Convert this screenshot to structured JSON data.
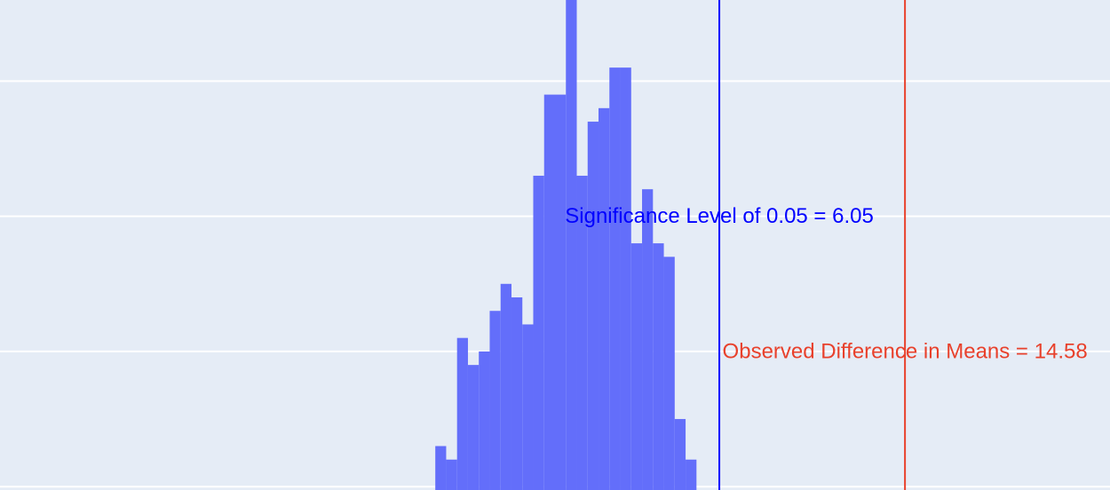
{
  "chart_data": {
    "type": "bar",
    "bar_color": "#636efa",
    "background": "#e5ecf6",
    "grid_color": "#ffffff",
    "grid": true,
    "bins": [
      {
        "x0": -7.0,
        "x1": -6.5,
        "count": 3
      },
      {
        "x0": -6.5,
        "x1": -6.0,
        "count": 2
      },
      {
        "x0": -6.0,
        "x1": -5.5,
        "count": 11
      },
      {
        "x0": -5.5,
        "x1": -5.0,
        "count": 9
      },
      {
        "x0": -5.0,
        "x1": -4.5,
        "count": 10
      },
      {
        "x0": -4.5,
        "x1": -4.0,
        "count": 13
      },
      {
        "x0": -4.0,
        "x1": -3.5,
        "count": 15
      },
      {
        "x0": -3.5,
        "x1": -3.0,
        "count": 14
      },
      {
        "x0": -3.0,
        "x1": -2.5,
        "count": 12
      },
      {
        "x0": -2.5,
        "x1": -2.0,
        "count": 23
      },
      {
        "x0": -2.0,
        "x1": -1.5,
        "count": 29
      },
      {
        "x0": -1.5,
        "x1": -1.0,
        "count": 29
      },
      {
        "x0": -1.0,
        "x1": -0.5,
        "count": 37
      },
      {
        "x0": -0.5,
        "x1": 0.0,
        "count": 23
      },
      {
        "x0": 0.0,
        "x1": 0.5,
        "count": 27
      },
      {
        "x0": 0.5,
        "x1": 1.0,
        "count": 28
      },
      {
        "x0": 1.0,
        "x1": 1.5,
        "count": 31
      },
      {
        "x0": 1.5,
        "x1": 2.0,
        "count": 31
      },
      {
        "x0": 2.0,
        "x1": 2.5,
        "count": 18
      },
      {
        "x0": 2.5,
        "x1": 3.0,
        "count": 22
      },
      {
        "x0": 3.0,
        "x1": 3.5,
        "count": 18
      },
      {
        "x0": 3.5,
        "x1": 4.0,
        "count": 17
      },
      {
        "x0": 4.0,
        "x1": 4.5,
        "count": 5
      },
      {
        "x0": 4.5,
        "x1": 5.0,
        "count": 2
      }
    ],
    "ylim": [
      -0.25,
      36
    ],
    "xlim": [
      -27,
      24
    ],
    "gridlines_y": [
      0,
      10,
      20,
      30
    ],
    "vlines": [
      {
        "x": 6.05,
        "color": "#0000ff",
        "label": "Significance Level of 0.05 = 6.05",
        "label_y": 20
      },
      {
        "x": 14.58,
        "color": "#e8412c",
        "label": "Observed Difference in Means = 14.58",
        "label_y": 10
      }
    ]
  }
}
